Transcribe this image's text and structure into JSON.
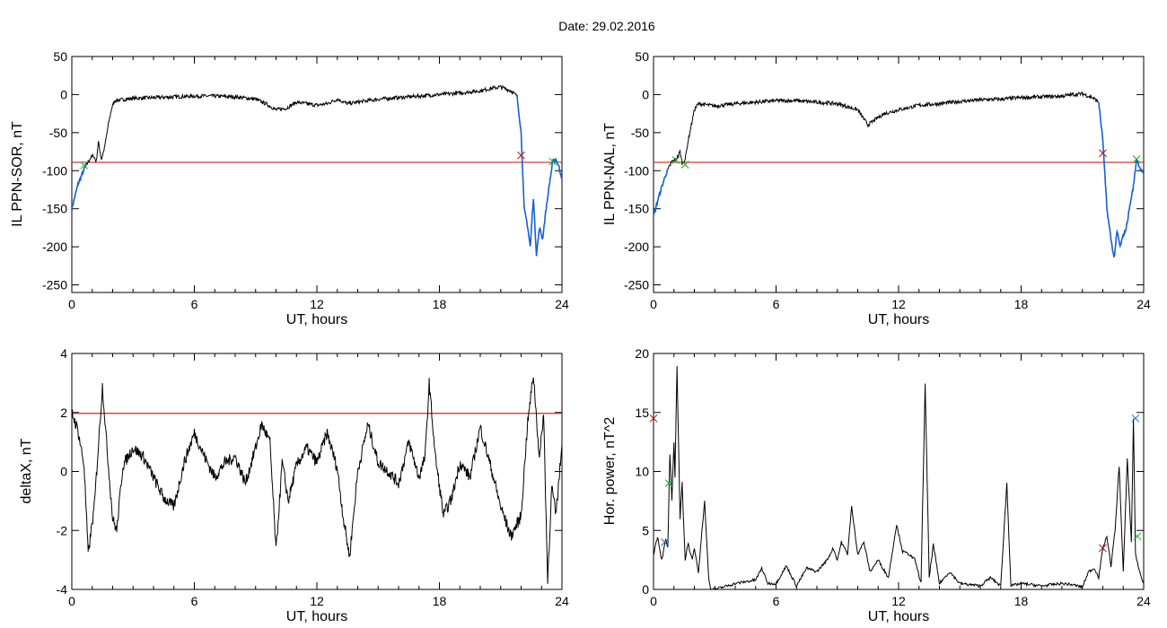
{
  "title": "Date:  29.02.2016",
  "colors": {
    "curve": "#000000",
    "substorm_segment": "#1560d4",
    "threshold": "#d42020",
    "marker_red": "#b01010",
    "marker_green": "#10b010",
    "marker_blue": "#1070c0"
  },
  "chart_data": [
    {
      "id": "il-sor",
      "type": "line",
      "title": "",
      "xlabel": "UT, hours",
      "ylabel": "IL PPN-SOR, nT",
      "xlim": [
        0,
        24
      ],
      "ylim": [
        -260,
        50
      ],
      "xticks": [
        "0",
        "6",
        "12",
        "18",
        "24"
      ],
      "yticks": [
        "50",
        "0",
        "-50",
        "-100",
        "-150",
        "-200",
        "-250"
      ],
      "ytick_values": [
        50,
        0,
        -50,
        -100,
        -150,
        -200,
        -250
      ],
      "threshold": -89,
      "series": [
        {
          "x": [
            0,
            0.3,
            0.6,
            0.9,
            1.05,
            1.2,
            1.3,
            1.45,
            1.6,
            1.8,
            1.95,
            2.1,
            3,
            4,
            5,
            6,
            7,
            8,
            9,
            9.5,
            10,
            10.5,
            11,
            11.5,
            12,
            12.5,
            13,
            13.5,
            14,
            15,
            16,
            17,
            18,
            19,
            20,
            20.5,
            21,
            21.5,
            21.8
          ],
          "y": [
            -150,
            -118,
            -98,
            -84,
            -80,
            -88,
            -62,
            -85,
            -70,
            -38,
            -18,
            -8,
            -5,
            -4,
            -3,
            -2,
            -2,
            -3,
            -6,
            -12,
            -20,
            -18,
            -10,
            -12,
            -14,
            -12,
            -6,
            -12,
            -10,
            -6,
            -4,
            -2,
            0,
            2,
            5,
            8,
            10,
            5,
            -2
          ]
        },
        {
          "x": [
            21.8,
            22.0,
            22.15,
            22.3,
            22.45,
            22.6,
            22.75,
            22.9,
            23.05,
            23.2,
            23.4,
            23.55,
            23.7,
            23.85,
            24
          ],
          "y": [
            -2,
            -50,
            -150,
            -170,
            -200,
            -135,
            -210,
            -175,
            -190,
            -155,
            -115,
            -88,
            -85,
            -95,
            -110
          ]
        }
      ],
      "markers": [
        {
          "x": 0.6,
          "y": -93,
          "color": "green"
        },
        {
          "x": 22.0,
          "y": -80,
          "color": "red"
        },
        {
          "x": 23.55,
          "y": -88,
          "color": "green"
        }
      ]
    },
    {
      "id": "il-nal",
      "type": "line",
      "title": "",
      "xlabel": "UT, hours",
      "ylabel": "IL PPN-NAL, nT",
      "xlim": [
        0,
        24
      ],
      "ylim": [
        -260,
        50
      ],
      "xticks": [
        "0",
        "6",
        "12",
        "18",
        "24"
      ],
      "yticks": [
        "50",
        "0",
        "-50",
        "-100",
        "-150",
        "-200",
        "-250"
      ],
      "ytick_values": [
        50,
        0,
        -50,
        -100,
        -150,
        -200,
        -250
      ],
      "threshold": -89,
      "series": [
        {
          "x": [
            0,
            0.3,
            0.6,
            0.9,
            1.1,
            1.3,
            1.4,
            1.55,
            1.7,
            2.0,
            2.2,
            3,
            4,
            5,
            6,
            7,
            8,
            9,
            10,
            10.5,
            11,
            11.3,
            12,
            13,
            14,
            15,
            16,
            17,
            18,
            19,
            20,
            20.5,
            21,
            21.5,
            21.8
          ],
          "y": [
            -160,
            -130,
            -105,
            -88,
            -85,
            -75,
            -90,
            -85,
            -60,
            -20,
            -12,
            -15,
            -12,
            -10,
            -8,
            -8,
            -10,
            -12,
            -20,
            -40,
            -30,
            -25,
            -20,
            -14,
            -12,
            -9,
            -7,
            -6,
            -4,
            -3,
            -2,
            0,
            1,
            -4,
            -10
          ]
        },
        {
          "x": [
            21.8,
            22.0,
            22.2,
            22.4,
            22.55,
            22.7,
            22.85,
            23.0,
            23.15,
            23.3,
            23.5,
            23.65,
            23.85,
            24
          ],
          "y": [
            -10,
            -60,
            -150,
            -190,
            -215,
            -180,
            -200,
            -185,
            -175,
            -150,
            -120,
            -85,
            -98,
            -105
          ]
        }
      ],
      "markers": [
        {
          "x": 1.1,
          "y": -86,
          "color": "green"
        },
        {
          "x": 1.55,
          "y": -92,
          "color": "green"
        },
        {
          "x": 22.0,
          "y": -77,
          "color": "red"
        },
        {
          "x": 23.65,
          "y": -85,
          "color": "green"
        }
      ]
    },
    {
      "id": "deltax",
      "type": "line",
      "title": "",
      "xlabel": "UT, hours",
      "ylabel": "deltaX, nT",
      "xlim": [
        0,
        24
      ],
      "ylim": [
        -4,
        4
      ],
      "xticks": [
        "0",
        "6",
        "12",
        "18",
        "24"
      ],
      "yticks": [
        "4",
        "2",
        "0",
        "-2",
        "-4"
      ],
      "ytick_values": [
        4,
        2,
        0,
        -2,
        -4
      ],
      "threshold": 1.97,
      "series": [
        {
          "x": [
            0,
            0.3,
            0.6,
            0.8,
            1.1,
            1.5,
            1.7,
            2.0,
            2.2,
            2.5,
            3.0,
            3.5,
            4.0,
            4.5,
            5.0,
            5.5,
            6.0,
            6.5,
            7.0,
            7.5,
            8.0,
            8.5,
            9.0,
            9.3,
            9.7,
            10.0,
            10.3,
            10.6,
            11.0,
            11.5,
            12.0,
            12.5,
            13.0,
            13.3,
            13.6,
            14.0,
            14.5,
            15.0,
            15.5,
            16.0,
            16.5,
            17.0,
            17.3,
            17.5,
            17.8,
            18.2,
            18.6,
            19.0,
            19.5,
            20.0,
            20.5,
            21.0,
            21.5,
            22.0,
            22.3,
            22.6,
            22.9,
            23.1,
            23.3,
            23.5,
            23.7,
            24
          ],
          "y": [
            2,
            1.4,
            0.2,
            -2.8,
            -1.2,
            2.9,
            1.0,
            -1.6,
            -2.0,
            0.2,
            0.8,
            0.5,
            -0.2,
            -0.9,
            -1.2,
            0.3,
            1.3,
            0.5,
            -0.2,
            0.3,
            0.5,
            -0.4,
            0.8,
            1.6,
            1.0,
            -2.7,
            0.3,
            -1.0,
            0.2,
            0.8,
            0.3,
            1.3,
            0.1,
            -1.6,
            -2.9,
            0.0,
            1.6,
            0.3,
            0.0,
            -0.4,
            1.0,
            -0.2,
            0.5,
            3.0,
            0.5,
            -1.5,
            -0.9,
            0.3,
            -0.2,
            1.5,
            0.2,
            -1.2,
            -2.2,
            -1.5,
            1.5,
            3.3,
            0.4,
            2.0,
            -3.7,
            -0.5,
            -1.5,
            0.9
          ]
        }
      ],
      "markers": []
    },
    {
      "id": "hor-power",
      "type": "line",
      "title": "",
      "xlabel": "UT, hours",
      "ylabel": "Hor. power, nT^2",
      "xlim": [
        0,
        24
      ],
      "ylim": [
        0,
        20
      ],
      "xticks": [
        "0",
        "6",
        "12",
        "18",
        "24"
      ],
      "yticks": [
        "20",
        "15",
        "10",
        "5",
        "0"
      ],
      "ytick_values": [
        20,
        15,
        10,
        5,
        0
      ],
      "threshold": null,
      "series": [
        {
          "x": [
            0,
            0.2,
            0.4,
            0.6,
            0.7,
            0.8,
            0.9,
            1.0,
            1.05,
            1.15,
            1.3,
            1.4,
            1.55,
            1.7,
            1.8,
            1.9,
            2.0,
            2.2,
            2.5,
            2.7,
            2.8,
            3.0,
            4.0,
            5.0,
            5.3,
            5.6,
            6.0,
            6.5,
            7.0,
            7.5,
            8.0,
            8.5,
            8.8,
            9.0,
            9.2,
            9.5,
            9.7,
            10.0,
            10.3,
            10.6,
            11.0,
            11.5,
            11.9,
            12.2,
            12.5,
            12.8,
            13.1,
            13.3,
            13.5,
            13.7,
            14.0,
            14.5,
            15.0,
            16.0,
            16.5,
            17.0,
            17.3,
            17.5,
            18.0,
            19.0,
            20.0,
            20.5,
            21.0,
            21.3,
            21.6,
            21.8,
            22.0,
            22.2,
            22.4,
            22.6,
            22.8,
            23.0,
            23.2,
            23.4,
            23.5,
            23.6,
            23.8,
            24
          ],
          "y": [
            3,
            4.5,
            2.5,
            4.2,
            3.5,
            11.5,
            7.5,
            12.5,
            9.5,
            19,
            6,
            9,
            2.5,
            4,
            3,
            2.5,
            3.5,
            1.5,
            7.5,
            1,
            0,
            0,
            0.5,
            0.8,
            1.8,
            0.5,
            0.5,
            2,
            0.3,
            1.8,
            1.5,
            2.5,
            3.5,
            2.5,
            4,
            3,
            7,
            3,
            4,
            1.5,
            2.5,
            1,
            5.5,
            3.2,
            3.0,
            2.5,
            0.5,
            17.5,
            1.0,
            3.8,
            0.5,
            1.5,
            0.5,
            0.3,
            1.0,
            0.3,
            9,
            0.3,
            0.5,
            0.3,
            0.5,
            0.4,
            0.2,
            1.5,
            1.8,
            1.0,
            3.5,
            4.5,
            2.0,
            5.0,
            10.5,
            1.5,
            11.0,
            4.0,
            14.5,
            3.0,
            1.5,
            0.5
          ]
        }
      ],
      "markers": [
        {
          "x": 0.0,
          "y": 14.5,
          "color": "red"
        },
        {
          "x": 0.55,
          "y": 4.0,
          "color": "blue"
        },
        {
          "x": 0.75,
          "y": 9.0,
          "color": "green"
        },
        {
          "x": 22.0,
          "y": 3.5,
          "color": "red"
        },
        {
          "x": 23.6,
          "y": 14.5,
          "color": "blue"
        },
        {
          "x": 23.7,
          "y": 4.5,
          "color": "green"
        }
      ]
    }
  ]
}
